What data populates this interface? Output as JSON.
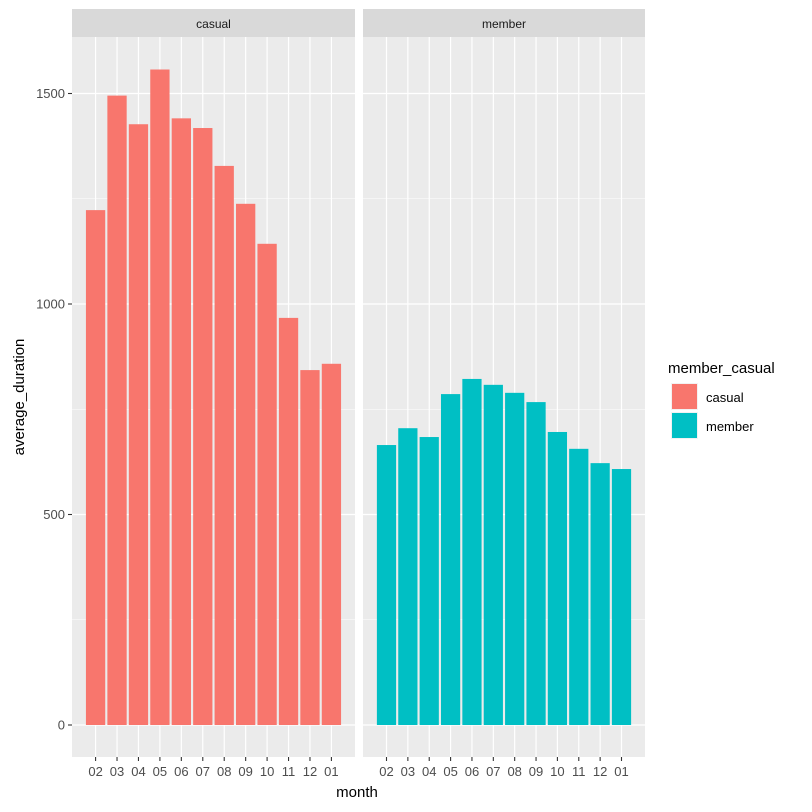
{
  "chart_data": {
    "type": "bar",
    "title": "",
    "xlabel": "month",
    "ylabel": "average_duration",
    "ylim": [
      0,
      1650
    ],
    "yticks": [
      0,
      500,
      1000,
      1500
    ],
    "ytick_labels": [
      "0",
      "500",
      "1000",
      "1500"
    ],
    "grid": true,
    "categories": [
      "02",
      "03",
      "04",
      "05",
      "06",
      "07",
      "08",
      "09",
      "10",
      "11",
      "12",
      "01"
    ],
    "facets": [
      {
        "label": "casual",
        "series": "casual",
        "color": "#F8766D",
        "values": [
          1223,
          1495,
          1427,
          1557,
          1441,
          1418,
          1328,
          1238,
          1143,
          967,
          843,
          858
        ]
      },
      {
        "label": "member",
        "series": "member",
        "color": "#00BFC4",
        "values": [
          665,
          705,
          684,
          786,
          822,
          808,
          789,
          767,
          696,
          656,
          622,
          608
        ]
      }
    ],
    "legend": {
      "title": "member_casual",
      "position": "right",
      "entries": [
        {
          "label": "casual",
          "color": "#F8766D"
        },
        {
          "label": "member",
          "color": "#00BFC4"
        }
      ]
    }
  },
  "colors": {
    "panel_bg": "#EBEBEB",
    "strip_bg": "#D9D9D9",
    "grid": "#FFFFFF",
    "text": "#4D4D4D",
    "title_text": "#000000"
  }
}
